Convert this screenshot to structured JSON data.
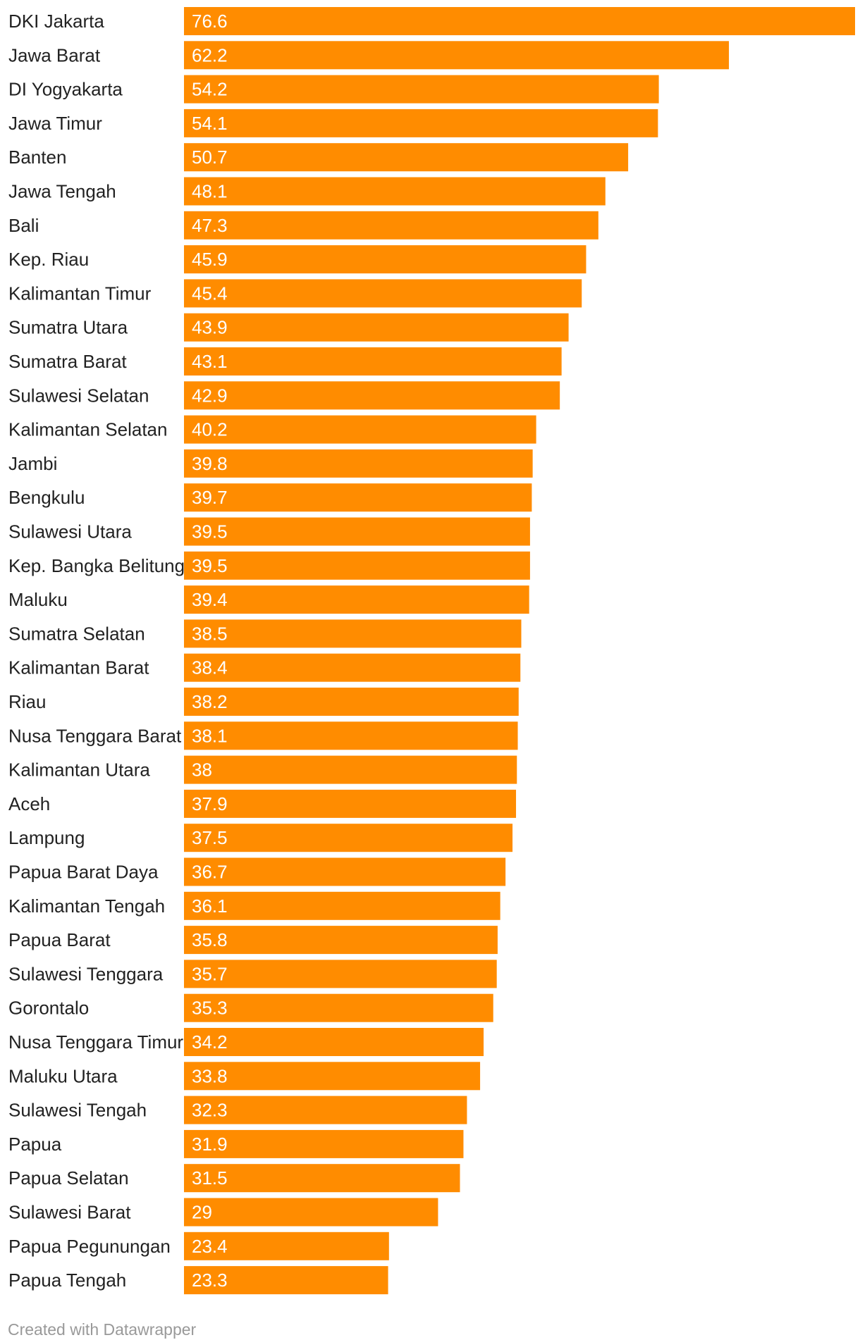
{
  "chart_data": {
    "type": "bar",
    "orientation": "horizontal",
    "categories": [
      "DKI Jakarta",
      "Jawa Barat",
      "DI Yogyakarta",
      "Jawa Timur",
      "Banten",
      "Jawa Tengah",
      "Bali",
      "Kep. Riau",
      "Kalimantan Timur",
      "Sumatra Utara",
      "Sumatra Barat",
      "Sulawesi Selatan",
      "Kalimantan Selatan",
      "Jambi",
      "Bengkulu",
      "Sulawesi Utara",
      "Kep. Bangka Belitung",
      "Maluku",
      "Sumatra Selatan",
      "Kalimantan Barat",
      "Riau",
      "Nusa Tenggara Barat",
      "Kalimantan Utara",
      "Aceh",
      "Lampung",
      "Papua Barat Daya",
      "Kalimantan Tengah",
      "Papua Barat",
      "Sulawesi Tenggara",
      "Gorontalo",
      "Nusa Tenggara Timur",
      "Maluku Utara",
      "Sulawesi Tengah",
      "Papua",
      "Papua Selatan",
      "Sulawesi Barat",
      "Papua Pegunungan",
      "Papua Tengah"
    ],
    "values": [
      76.6,
      62.2,
      54.2,
      54.1,
      50.7,
      48.1,
      47.3,
      45.9,
      45.4,
      43.9,
      43.1,
      42.9,
      40.2,
      39.8,
      39.7,
      39.5,
      39.5,
      39.4,
      38.5,
      38.4,
      38.2,
      38.1,
      38,
      37.9,
      37.5,
      36.7,
      36.1,
      35.8,
      35.7,
      35.3,
      34.2,
      33.8,
      32.3,
      31.9,
      31.5,
      29,
      23.4,
      23.3
    ],
    "value_labels": [
      "76.6",
      "62.2",
      "54.2",
      "54.1",
      "50.7",
      "48.1",
      "47.3",
      "45.9",
      "45.4",
      "43.9",
      "43.1",
      "42.9",
      "40.2",
      "39.8",
      "39.7",
      "39.5",
      "39.5",
      "39.4",
      "38.5",
      "38.4",
      "38.2",
      "38.1",
      "38",
      "37.9",
      "37.5",
      "36.7",
      "36.1",
      "35.8",
      "35.7",
      "35.3",
      "34.2",
      "33.8",
      "32.3",
      "31.9",
      "31.5",
      "29",
      "23.4",
      "23.3"
    ],
    "xlim": [
      0,
      76.6
    ],
    "grid": false,
    "legend": "none",
    "bar_color": "#ff8c00",
    "value_label_color": "#ffffff",
    "label_color": "#222222"
  },
  "footer": {
    "credit": "Created with Datawrapper"
  }
}
